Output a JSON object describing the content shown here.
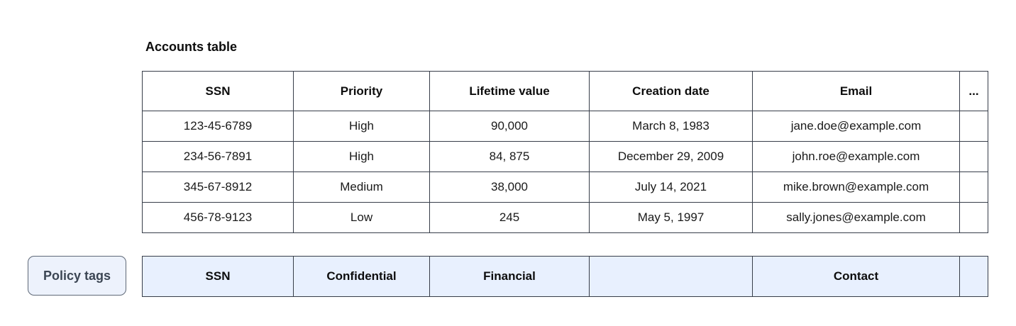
{
  "title": "Accounts table",
  "table": {
    "columns": [
      "SSN",
      "Priority",
      "Lifetime value",
      "Creation date",
      "Email",
      "..."
    ],
    "rows": [
      [
        "123-45-6789",
        "High",
        "90,000",
        "March 8, 1983",
        "jane.doe@example.com",
        ""
      ],
      [
        "234-56-7891",
        "High",
        "84, 875",
        "December 29, 2009",
        "john.roe@example.com",
        ""
      ],
      [
        "345-67-8912",
        "Medium",
        "38,000",
        "July 14, 2021",
        "mike.brown@example.com",
        ""
      ],
      [
        "456-78-9123",
        "Low",
        "245",
        "May 5, 1997",
        "sally.jones@example.com",
        ""
      ]
    ]
  },
  "policy": {
    "label": "Policy tags",
    "tags": [
      "SSN",
      "Confidential",
      "Financial",
      "",
      "Contact",
      ""
    ]
  },
  "colors": {
    "table_border": "#373d49",
    "policy_fill": "#e8f0fe",
    "policy_label_fill": "#edf2fc",
    "policy_label_border": "#5f6977",
    "policy_label_text": "#3c4654"
  }
}
